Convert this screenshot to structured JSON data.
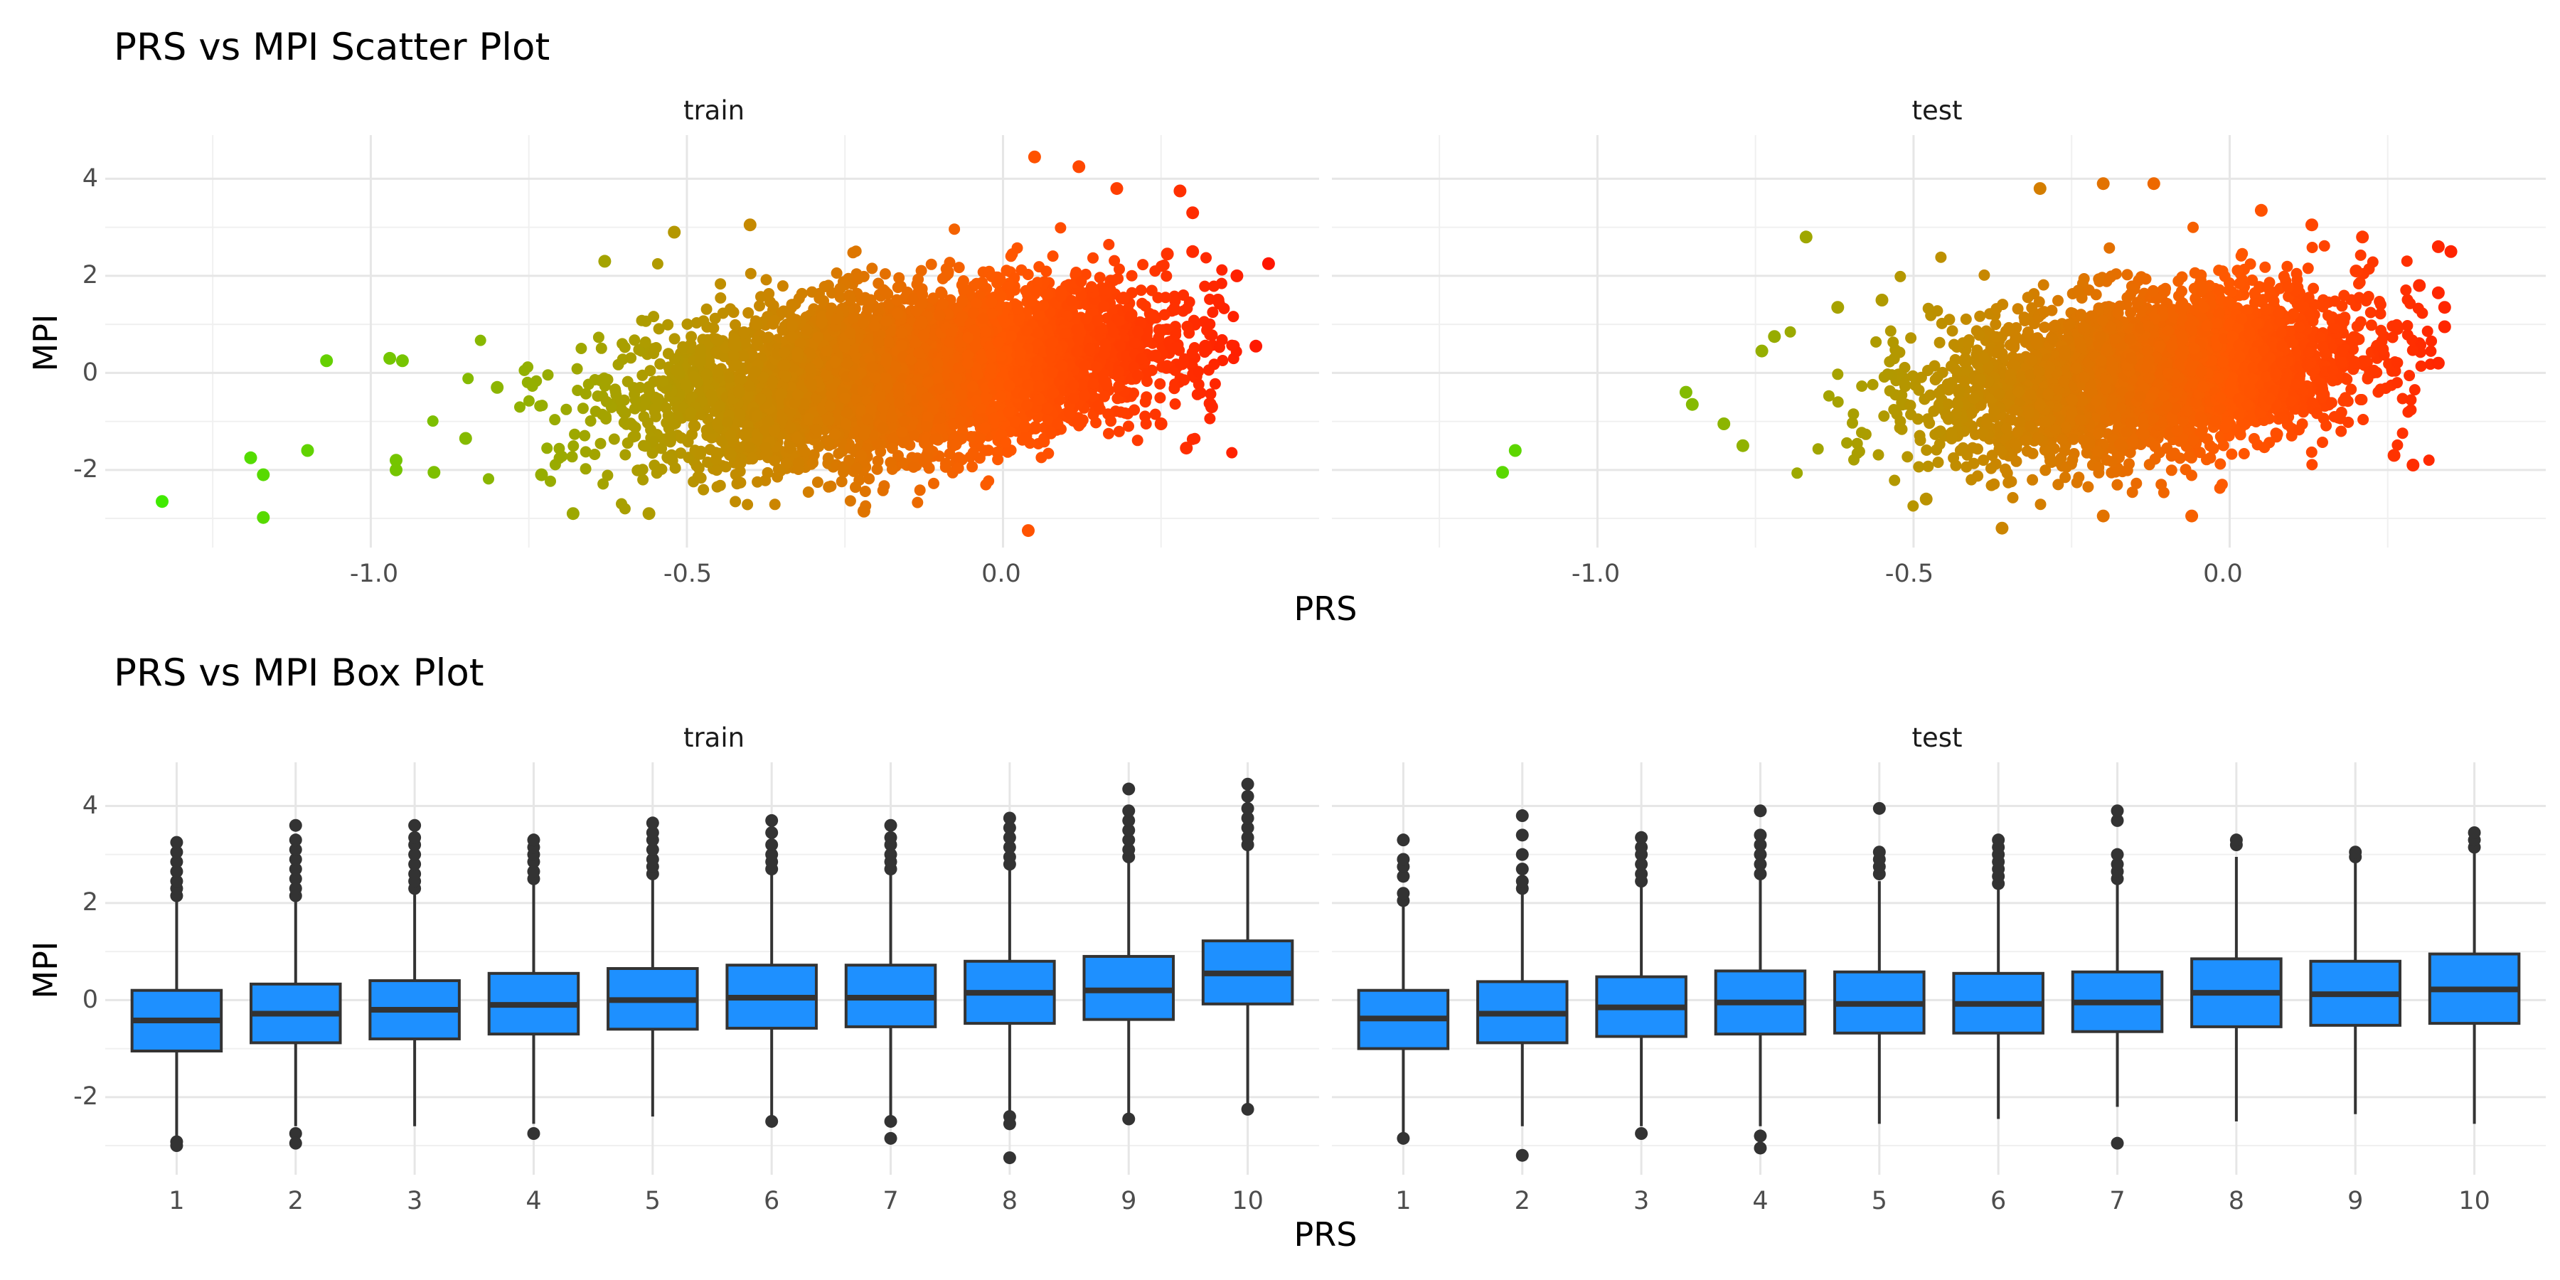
{
  "chart_data": [
    {
      "type": "scatter",
      "title": "PRS vs MPI Scatter Plot",
      "xlabel": "PRS",
      "ylabel": "MPI",
      "facets": [
        "train",
        "test"
      ],
      "xlim": [
        -1.42,
        0.5
      ],
      "ylim": [
        -3.6,
        4.9
      ],
      "x_ticks": [
        -1.0,
        -0.5,
        0.0
      ],
      "x_tick_labels": [
        "-1.0",
        "-0.5",
        "0.0"
      ],
      "y_ticks": [
        -2,
        0,
        2,
        4
      ],
      "y_tick_labels": [
        "-2",
        "0",
        "2",
        "4"
      ],
      "grid": true,
      "legend": "none",
      "color_gradient": {
        "low": "#33ff00",
        "high": "#ff0000",
        "mapped_to": "PRS"
      },
      "panels": [
        {
          "facet": "train",
          "x_range": [
            -1.35,
            0.42
          ],
          "y_range": [
            -3.25,
            4.45
          ],
          "bulk": {
            "x_center": -0.15,
            "x_sd": 0.2,
            "y_center": 0.0,
            "y_sd": 0.85,
            "correlation": 0.35
          },
          "points": [
            [
              -1.33,
              -2.65
            ],
            [
              -1.19,
              -1.75
            ],
            [
              -1.17,
              -2.1
            ],
            [
              -1.17,
              -2.98
            ],
            [
              -1.1,
              -1.6
            ],
            [
              -1.07,
              0.25
            ],
            [
              -0.97,
              0.3
            ],
            [
              -0.95,
              0.25
            ],
            [
              -0.96,
              -1.8
            ],
            [
              -0.96,
              -2.0
            ],
            [
              -0.9,
              -2.05
            ],
            [
              -0.85,
              -1.35
            ],
            [
              -0.8,
              -0.3
            ],
            [
              -0.73,
              -2.1
            ],
            [
              -0.68,
              -2.9
            ],
            [
              -0.63,
              2.3
            ],
            [
              -0.56,
              -2.9
            ],
            [
              -0.52,
              2.9
            ],
            [
              -0.4,
              3.05
            ],
            [
              -0.22,
              -2.85
            ],
            [
              0.04,
              -3.25
            ],
            [
              0.05,
              4.45
            ],
            [
              0.12,
              4.25
            ],
            [
              0.18,
              3.8
            ],
            [
              0.25,
              -1.05
            ],
            [
              0.28,
              3.75
            ],
            [
              0.3,
              3.3
            ],
            [
              0.32,
              0.55
            ],
            [
              0.34,
              1.5
            ],
            [
              0.37,
              2.0
            ],
            [
              0.4,
              0.55
            ],
            [
              0.42,
              2.25
            ],
            [
              0.29,
              -1.55
            ],
            [
              0.3,
              2.5
            ],
            [
              0.26,
              2.45
            ],
            [
              0.33,
              -0.7
            ]
          ]
        },
        {
          "facet": "test",
          "x_range": [
            -1.15,
            0.37
          ],
          "y_range": [
            -3.2,
            3.95
          ],
          "bulk": {
            "x_center": -0.12,
            "x_sd": 0.17,
            "y_center": 0.0,
            "y_sd": 0.85,
            "correlation": 0.3
          },
          "points": [
            [
              -1.13,
              -1.6
            ],
            [
              -1.15,
              -2.05
            ],
            [
              -0.86,
              -0.4
            ],
            [
              -0.85,
              -0.65
            ],
            [
              -0.8,
              -1.05
            ],
            [
              -0.77,
              -1.5
            ],
            [
              -0.74,
              0.45
            ],
            [
              -0.72,
              0.75
            ],
            [
              -0.67,
              2.8
            ],
            [
              -0.62,
              1.35
            ],
            [
              -0.55,
              1.5
            ],
            [
              -0.48,
              -2.6
            ],
            [
              -0.36,
              -3.2
            ],
            [
              -0.3,
              3.8
            ],
            [
              -0.2,
              3.9
            ],
            [
              -0.2,
              -2.95
            ],
            [
              -0.12,
              3.9
            ],
            [
              -0.06,
              -2.95
            ],
            [
              0.05,
              3.35
            ],
            [
              0.13,
              3.05
            ],
            [
              0.2,
              2.1
            ],
            [
              0.21,
              2.8
            ],
            [
              0.26,
              -1.7
            ],
            [
              0.29,
              -1.9
            ],
            [
              0.3,
              1.8
            ],
            [
              0.33,
              2.6
            ],
            [
              0.34,
              0.95
            ],
            [
              0.33,
              0.2
            ],
            [
              0.35,
              2.5
            ],
            [
              0.33,
              1.65
            ],
            [
              0.34,
              1.35
            ]
          ]
        }
      ]
    },
    {
      "type": "box",
      "title": "PRS vs MPI Box Plot",
      "xlabel": "PRS",
      "ylabel": "MPI",
      "facets": [
        "train",
        "test"
      ],
      "categories": [
        "1",
        "2",
        "3",
        "4",
        "5",
        "6",
        "7",
        "8",
        "9",
        "10"
      ],
      "ylim": [
        -3.6,
        4.9
      ],
      "y_ticks": [
        -2,
        0,
        2,
        4
      ],
      "y_tick_labels": [
        "-2",
        "0",
        "2",
        "4"
      ],
      "fill_color": "#1e90ff",
      "outline_color": "#333333",
      "grid": true,
      "panels": [
        {
          "facet": "train",
          "boxes": [
            {
              "category": "1",
              "q1": -1.05,
              "median": -0.42,
              "q3": 0.2,
              "whisker_low": -2.85,
              "whisker_high": 2.05,
              "outliers": [
                -2.92,
                -3.0,
                2.15,
                2.3,
                2.45,
                2.65,
                2.85,
                3.05,
                3.25
              ]
            },
            {
              "category": "2",
              "q1": -0.88,
              "median": -0.28,
              "q3": 0.33,
              "whisker_low": -2.6,
              "whisker_high": 2.1,
              "outliers": [
                -2.75,
                -2.95,
                2.15,
                2.3,
                2.5,
                2.7,
                2.9,
                3.1,
                3.3,
                3.6
              ]
            },
            {
              "category": "3",
              "q1": -0.8,
              "median": -0.2,
              "q3": 0.4,
              "whisker_low": -2.6,
              "whisker_high": 2.25,
              "outliers": [
                2.3,
                2.45,
                2.6,
                2.8,
                3.0,
                3.2,
                3.35,
                3.6
              ]
            },
            {
              "category": "4",
              "q1": -0.7,
              "median": -0.1,
              "q3": 0.55,
              "whisker_low": -2.55,
              "whisker_high": 2.4,
              "outliers": [
                -2.75,
                2.5,
                2.65,
                2.85,
                3.0,
                3.15,
                3.3
              ]
            },
            {
              "category": "5",
              "q1": -0.6,
              "median": 0.0,
              "q3": 0.65,
              "whisker_low": -2.4,
              "whisker_high": 2.5,
              "outliers": [
                2.6,
                2.75,
                2.9,
                3.1,
                3.3,
                3.45,
                3.65
              ]
            },
            {
              "category": "6",
              "q1": -0.58,
              "median": 0.05,
              "q3": 0.72,
              "whisker_low": -2.4,
              "whisker_high": 2.6,
              "outliers": [
                -2.5,
                2.7,
                2.85,
                3.0,
                3.2,
                3.45,
                3.7
              ]
            },
            {
              "category": "7",
              "q1": -0.55,
              "median": 0.05,
              "q3": 0.72,
              "whisker_low": -2.4,
              "whisker_high": 2.6,
              "outliers": [
                -2.5,
                -2.85,
                2.7,
                2.85,
                3.0,
                3.2,
                3.35,
                3.6
              ]
            },
            {
              "category": "8",
              "q1": -0.48,
              "median": 0.15,
              "q3": 0.8,
              "whisker_low": -2.3,
              "whisker_high": 2.7,
              "outliers": [
                -2.4,
                -2.55,
                -3.25,
                2.8,
                2.95,
                3.15,
                3.35,
                3.55,
                3.75
              ]
            },
            {
              "category": "9",
              "q1": -0.4,
              "median": 0.2,
              "q3": 0.9,
              "whisker_low": -2.35,
              "whisker_high": 2.85,
              "outliers": [
                -2.45,
                2.95,
                3.1,
                3.3,
                3.5,
                3.7,
                3.9,
                4.35
              ]
            },
            {
              "category": "10",
              "q1": -0.08,
              "median": 0.55,
              "q3": 1.22,
              "whisker_low": -2.2,
              "whisker_high": 3.1,
              "outliers": [
                -2.25,
                3.2,
                3.35,
                3.55,
                3.75,
                3.95,
                4.2,
                4.45
              ]
            }
          ]
        },
        {
          "facet": "test",
          "boxes": [
            {
              "category": "1",
              "q1": -1.0,
              "median": -0.38,
              "q3": 0.2,
              "whisker_low": -2.75,
              "whisker_high": 1.95,
              "outliers": [
                -2.85,
                2.05,
                2.2,
                2.55,
                2.75,
                2.9,
                3.3
              ]
            },
            {
              "category": "2",
              "q1": -0.88,
              "median": -0.28,
              "q3": 0.38,
              "whisker_low": -2.6,
              "whisker_high": 2.2,
              "outliers": [
                -3.2,
                2.3,
                2.45,
                2.7,
                3.0,
                3.4,
                3.8
              ]
            },
            {
              "category": "3",
              "q1": -0.75,
              "median": -0.15,
              "q3": 0.48,
              "whisker_low": -2.6,
              "whisker_high": 2.35,
              "outliers": [
                -2.75,
                2.45,
                2.6,
                2.8,
                3.0,
                3.15,
                3.35
              ]
            },
            {
              "category": "4",
              "q1": -0.7,
              "median": -0.05,
              "q3": 0.6,
              "whisker_low": -2.6,
              "whisker_high": 2.5,
              "outliers": [
                -2.8,
                -3.05,
                2.6,
                2.8,
                3.0,
                3.2,
                3.4,
                3.9
              ]
            },
            {
              "category": "5",
              "q1": -0.68,
              "median": -0.08,
              "q3": 0.58,
              "whisker_low": -2.55,
              "whisker_high": 2.45,
              "outliers": [
                2.6,
                2.75,
                2.9,
                3.05,
                3.95
              ]
            },
            {
              "category": "6",
              "q1": -0.68,
              "median": -0.08,
              "q3": 0.55,
              "whisker_low": -2.45,
              "whisker_high": 2.3,
              "outliers": [
                2.4,
                2.55,
                2.7,
                2.85,
                3.0,
                3.15,
                3.3
              ]
            },
            {
              "category": "7",
              "q1": -0.65,
              "median": -0.05,
              "q3": 0.58,
              "whisker_low": -2.2,
              "whisker_high": 2.4,
              "outliers": [
                -2.95,
                2.5,
                2.65,
                2.8,
                3.0,
                3.7,
                3.9
              ]
            },
            {
              "category": "8",
              "q1": -0.55,
              "median": 0.15,
              "q3": 0.85,
              "whisker_low": -2.5,
              "whisker_high": 2.95,
              "outliers": [
                3.2,
                3.3
              ]
            },
            {
              "category": "9",
              "q1": -0.52,
              "median": 0.12,
              "q3": 0.8,
              "whisker_low": -2.35,
              "whisker_high": 2.85,
              "outliers": [
                2.95,
                3.05
              ]
            },
            {
              "category": "10",
              "q1": -0.48,
              "median": 0.22,
              "q3": 0.95,
              "whisker_low": -2.55,
              "whisker_high": 3.05,
              "outliers": [
                3.15,
                3.3,
                3.45
              ]
            }
          ]
        }
      ]
    }
  ]
}
